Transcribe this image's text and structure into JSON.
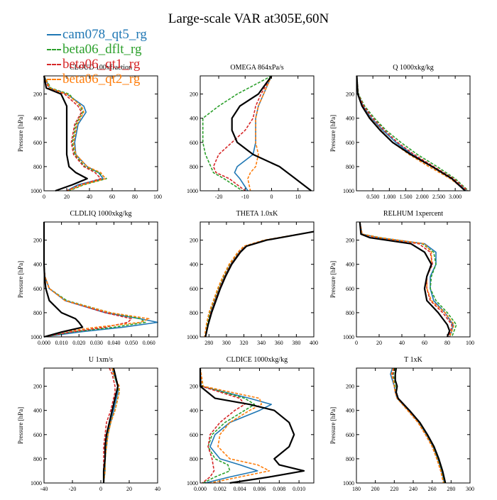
{
  "title": "Large-scale VAR at305E,60N",
  "legend": [
    {
      "label": "cam078_qt5_rg",
      "color": "#1f77b4",
      "dash": false
    },
    {
      "label": "beta06_dflt_rg",
      "color": "#2ca02c",
      "dash": true
    },
    {
      "label": "beta06_qt1_rg",
      "color": "#d62728",
      "dash": true
    },
    {
      "label": "beta06_qt2_rg",
      "color": "#ff7f0e",
      "dash": true
    }
  ],
  "ref_color": "#000000",
  "chart_data": [
    {
      "type": "line",
      "title": "CLOUD 100xfraction",
      "ylabel": "Pressure [hPa]",
      "xlim": [
        0,
        100
      ],
      "ylim": [
        1000,
        50
      ],
      "xticks": [
        0,
        20,
        40,
        60,
        80,
        100
      ],
      "xtick_labels": [
        "0",
        "20",
        "40",
        "60",
        "80",
        "100"
      ],
      "yticks": [
        200,
        400,
        600,
        800,
        1000
      ],
      "y": [
        50,
        150,
        200,
        300,
        350,
        450,
        600,
        700,
        800,
        850,
        900,
        950,
        1000
      ],
      "series": [
        {
          "name": "cam078_qt5_rg",
          "x": [
            0,
            5,
            20,
            35,
            37,
            30,
            27,
            28,
            38,
            48,
            52,
            30,
            20
          ]
        },
        {
          "name": "beta06_dflt_rg",
          "x": [
            0,
            6,
            22,
            32,
            34,
            28,
            25,
            27,
            36,
            48,
            55,
            35,
            22
          ]
        },
        {
          "name": "beta06_qt1_rg",
          "x": [
            0,
            4,
            18,
            30,
            33,
            27,
            24,
            26,
            35,
            45,
            50,
            32,
            20
          ]
        },
        {
          "name": "beta06_qt2_rg",
          "x": [
            0,
            5,
            20,
            33,
            35,
            29,
            26,
            28,
            38,
            50,
            54,
            34,
            21
          ]
        },
        {
          "name": "ref",
          "x": [
            0,
            2,
            15,
            20,
            20,
            20,
            20,
            20,
            22,
            28,
            38,
            25,
            10
          ]
        }
      ]
    },
    {
      "type": "line",
      "title": "OMEGA 864xPa/s",
      "ylabel": "",
      "xlim": [
        -27,
        16
      ],
      "ylim": [
        1000,
        50
      ],
      "xticks": [
        -20,
        -10,
        0,
        10
      ],
      "xtick_labels": [
        "-20",
        "-10",
        "0",
        "10"
      ],
      "yticks": [
        200,
        400,
        600,
        800,
        1000
      ],
      "y": [
        50,
        200,
        300,
        400,
        500,
        600,
        700,
        800,
        850,
        900,
        1000
      ],
      "series": [
        {
          "name": "cam078_qt5_rg",
          "x": [
            0,
            -3,
            -5,
            -6,
            -6,
            -6,
            -7,
            -13,
            -14,
            -12,
            -9
          ]
        },
        {
          "name": "beta06_dflt_rg",
          "x": [
            0,
            -13,
            -20,
            -26,
            -26,
            -26,
            -25,
            -23,
            -22,
            -18,
            -11
          ]
        },
        {
          "name": "beta06_qt1_rg",
          "x": [
            0,
            -4,
            -6,
            -7,
            -10,
            -15,
            -20,
            -22,
            -21,
            -16,
            -10
          ]
        },
        {
          "name": "beta06_qt2_rg",
          "x": [
            0,
            -3,
            -5,
            -6,
            -6,
            -6,
            -5,
            -6,
            -8,
            -9,
            -8
          ]
        },
        {
          "name": "ref",
          "x": [
            0,
            -5,
            -12,
            -15,
            -15,
            -13,
            -7,
            3,
            6,
            9,
            15
          ]
        }
      ]
    },
    {
      "type": "line",
      "title": "Q 1000xkg/kg",
      "ylabel": "Pressure [hPa]",
      "xlim": [
        0,
        3.45
      ],
      "ylim": [
        1000,
        50
      ],
      "xticks": [
        0.5,
        1,
        1.5,
        2,
        2.5,
        3
      ],
      "xtick_labels": [
        "0.500",
        "1.000",
        "1.500",
        "2.000",
        "2.500",
        "3.000"
      ],
      "yticks": [
        200,
        400,
        600,
        800,
        1000
      ],
      "y": [
        50,
        200,
        300,
        400,
        500,
        600,
        700,
        800,
        900,
        1000
      ],
      "series": [
        {
          "name": "cam078_qt5_rg",
          "x": [
            0.01,
            0.05,
            0.2,
            0.45,
            0.8,
            1.2,
            1.7,
            2.3,
            2.9,
            3.35
          ]
        },
        {
          "name": "beta06_dflt_rg",
          "x": [
            0.01,
            0.06,
            0.25,
            0.55,
            0.9,
            1.35,
            1.85,
            2.45,
            3.0,
            3.4
          ]
        },
        {
          "name": "beta06_qt1_rg",
          "x": [
            0.01,
            0.05,
            0.22,
            0.5,
            0.85,
            1.25,
            1.75,
            2.35,
            2.95,
            3.38
          ]
        },
        {
          "name": "beta06_qt2_rg",
          "x": [
            0.01,
            0.05,
            0.18,
            0.42,
            0.75,
            1.1,
            1.6,
            2.2,
            2.85,
            3.33
          ]
        },
        {
          "name": "ref",
          "x": [
            0.01,
            0.04,
            0.17,
            0.4,
            0.72,
            1.1,
            1.65,
            2.3,
            2.9,
            3.3
          ]
        }
      ]
    },
    {
      "type": "line",
      "title": "CLDLIQ 1000xkg/kg",
      "ylabel": "Pressure [hPa]",
      "xlim": [
        0,
        0.065
      ],
      "ylim": [
        1000,
        50
      ],
      "xticks": [
        0,
        0.01,
        0.02,
        0.03,
        0.04,
        0.05,
        0.06
      ],
      "xtick_labels": [
        "0.000",
        "0.010",
        "0.020",
        "0.030",
        "0.040",
        "0.050",
        "0.060"
      ],
      "yticks": [
        200,
        400,
        600,
        800,
        1000
      ],
      "y": [
        50,
        400,
        500,
        600,
        700,
        800,
        850,
        880,
        920,
        960,
        1000
      ],
      "series": [
        {
          "name": "cam078_qt5_rg",
          "x": [
            0,
            0,
            0.0005,
            0.003,
            0.012,
            0.035,
            0.055,
            0.065,
            0.045,
            0.02,
            0
          ]
        },
        {
          "name": "beta06_dflt_rg",
          "x": [
            0,
            0,
            0.0005,
            0.003,
            0.013,
            0.038,
            0.055,
            0.058,
            0.04,
            0.015,
            0
          ]
        },
        {
          "name": "beta06_qt1_rg",
          "x": [
            0,
            0,
            0.0005,
            0.003,
            0.012,
            0.035,
            0.05,
            0.048,
            0.035,
            0.015,
            0
          ]
        },
        {
          "name": "beta06_qt2_rg",
          "x": [
            0,
            0,
            0.0005,
            0.003,
            0.012,
            0.038,
            0.06,
            0.055,
            0.03,
            0.01,
            0
          ]
        },
        {
          "name": "ref",
          "x": [
            0,
            0,
            0.0003,
            0.001,
            0.003,
            0.01,
            0.018,
            0.02,
            0.022,
            0.01,
            0
          ]
        }
      ]
    },
    {
      "type": "line",
      "title": "THETA 1.0xK",
      "ylabel": "",
      "xlim": [
        270,
        400
      ],
      "ylim": [
        1000,
        50
      ],
      "xticks": [
        280,
        300,
        320,
        340,
        360,
        380,
        400
      ],
      "xtick_labels": [
        "280",
        "300",
        "320",
        "340",
        "360",
        "380",
        "400"
      ],
      "yticks": [
        200,
        400,
        600,
        800,
        1000
      ],
      "y": [
        130,
        200,
        250,
        300,
        400,
        500,
        600,
        700,
        800,
        900,
        1000
      ],
      "series": [
        {
          "name": "cam078_qt5_rg",
          "x": [
            400,
            345,
            322,
            315,
            305,
            298,
            292,
            287,
            282,
            279,
            276
          ]
        },
        {
          "name": "beta06_dflt_rg",
          "x": [
            400,
            344,
            321,
            314,
            304,
            297,
            291,
            286,
            281,
            278,
            276
          ]
        },
        {
          "name": "beta06_qt1_rg",
          "x": [
            400,
            345,
            322,
            315,
            305,
            298,
            292,
            287,
            282,
            279,
            276
          ]
        },
        {
          "name": "beta06_qt2_rg",
          "x": [
            400,
            343,
            320,
            313,
            303,
            296,
            290,
            285,
            280,
            277,
            275
          ]
        },
        {
          "name": "ref",
          "x": [
            400,
            346,
            323,
            316,
            306,
            299,
            293,
            288,
            283,
            279,
            276
          ]
        }
      ]
    },
    {
      "type": "line",
      "title": "RELHUM 1xpercent",
      "ylabel": "Pressure [hPa]",
      "xlim": [
        0,
        100
      ],
      "ylim": [
        1000,
        50
      ],
      "xticks": [
        0,
        20,
        40,
        60,
        80,
        100
      ],
      "xtick_labels": [
        "0",
        "20",
        "40",
        "60",
        "80",
        "100"
      ],
      "yticks": [
        200,
        400,
        600,
        800,
        1000
      ],
      "y": [
        50,
        150,
        180,
        230,
        300,
        400,
        500,
        600,
        700,
        800,
        900,
        950,
        1000
      ],
      "series": [
        {
          "name": "cam078_qt5_rg",
          "x": [
            3,
            5,
            20,
            60,
            70,
            70,
            65,
            65,
            68,
            78,
            85,
            84,
            82
          ]
        },
        {
          "name": "beta06_dflt_rg",
          "x": [
            3,
            5,
            22,
            58,
            68,
            70,
            66,
            65,
            70,
            80,
            88,
            86,
            84
          ]
        },
        {
          "name": "beta06_qt1_rg",
          "x": [
            3,
            5,
            18,
            55,
            65,
            67,
            62,
            62,
            65,
            76,
            84,
            83,
            81
          ]
        },
        {
          "name": "beta06_qt2_rg",
          "x": [
            3,
            5,
            21,
            60,
            66,
            66,
            62,
            62,
            66,
            78,
            86,
            84,
            82
          ]
        },
        {
          "name": "ref",
          "x": [
            3,
            4,
            12,
            48,
            60,
            66,
            62,
            60,
            62,
            72,
            80,
            82,
            80
          ]
        }
      ]
    },
    {
      "type": "line",
      "title": "U 1xm/s",
      "ylabel": "Pressure [hPa]",
      "xlim": [
        -40,
        40
      ],
      "ylim": [
        1000,
        50
      ],
      "xticks": [
        -40,
        -20,
        0,
        20,
        40
      ],
      "xtick_labels": [
        "-40",
        "-20",
        "0",
        "20",
        "40"
      ],
      "yticks": [
        200,
        400,
        600,
        800,
        1000
      ],
      "y": [
        50,
        100,
        200,
        250,
        300,
        400,
        500,
        600,
        700,
        800,
        900,
        1000
      ],
      "series": [
        {
          "name": "cam078_qt5_rg",
          "x": [
            8,
            9,
            12,
            12,
            11,
            9,
            7,
            5,
            4,
            3,
            3,
            2
          ]
        },
        {
          "name": "beta06_dflt_rg",
          "x": [
            8,
            9,
            12,
            13,
            12,
            10,
            7,
            5,
            4,
            3,
            3,
            2
          ]
        },
        {
          "name": "beta06_qt1_rg",
          "x": [
            6,
            8,
            10,
            10,
            9,
            7,
            4,
            3,
            2,
            2,
            2,
            2
          ]
        },
        {
          "name": "beta06_qt2_rg",
          "x": [
            8,
            9,
            13,
            13,
            12,
            10,
            7,
            5,
            4,
            3,
            3,
            2
          ]
        },
        {
          "name": "ref",
          "x": [
            9,
            10,
            12,
            11,
            10,
            8,
            6,
            4,
            3,
            3,
            2,
            2
          ]
        }
      ]
    },
    {
      "type": "line",
      "title": "CLDICE 1000xkg/kg",
      "ylabel": "",
      "xlim": [
        0,
        0.0115
      ],
      "ylim": [
        1000,
        50
      ],
      "xticks": [
        0,
        0.002,
        0.004,
        0.006,
        0.008,
        0.01
      ],
      "xtick_labels": [
        "0.000",
        "0.002",
        "0.004",
        "0.006",
        "0.008",
        "0.010"
      ],
      "yticks": [
        200,
        400,
        600,
        800,
        1000
      ],
      "y": [
        50,
        200,
        300,
        350,
        400,
        500,
        600,
        700,
        800,
        850,
        900,
        950,
        1000
      ],
      "series": [
        {
          "name": "cam078_qt5_rg",
          "x": [
            0,
            0.0001,
            0.005,
            0.0072,
            0.006,
            0.003,
            0.0015,
            0.001,
            0.002,
            0.004,
            0.0058,
            0.003,
            0.0005
          ]
        },
        {
          "name": "beta06_dflt_rg",
          "x": [
            0,
            0.0002,
            0.0045,
            0.0055,
            0.0045,
            0.0025,
            0.0012,
            0.0008,
            0.0015,
            0.0028,
            0.003,
            0.0015,
            0.0003
          ]
        },
        {
          "name": "beta06_qt1_rg",
          "x": [
            0,
            0.0001,
            0.004,
            0.0045,
            0.0035,
            0.002,
            0.001,
            0.0008,
            0.0012,
            0.0013,
            0.0014,
            0.001,
            0.0002
          ]
        },
        {
          "name": "beta06_qt2_rg",
          "x": [
            0,
            0.0003,
            0.006,
            0.0062,
            0.005,
            0.003,
            0.002,
            0.0018,
            0.003,
            0.0058,
            0.007,
            0.004,
            0.001
          ]
        },
        {
          "name": "ref",
          "x": [
            0,
            0,
            0.0015,
            0.005,
            0.0075,
            0.009,
            0.0095,
            0.009,
            0.0075,
            0.008,
            0.0105,
            0.007,
            0.003
          ]
        }
      ]
    },
    {
      "type": "line",
      "title": "T 1xK",
      "ylabel": "Pressure [hPa]",
      "xlim": [
        180,
        300
      ],
      "ylim": [
        1000,
        50
      ],
      "xticks": [
        180,
        200,
        220,
        240,
        260,
        280,
        300
      ],
      "xtick_labels": [
        "180",
        "200",
        "220",
        "240",
        "260",
        "280",
        "300"
      ],
      "yticks": [
        200,
        400,
        600,
        800,
        1000
      ],
      "y": [
        50,
        100,
        150,
        200,
        250,
        300,
        400,
        500,
        600,
        700,
        800,
        900,
        1000
      ],
      "series": [
        {
          "name": "cam078_qt5_rg",
          "x": [
            218,
            216,
            218,
            220,
            221,
            223,
            235,
            246,
            254,
            261,
            266,
            270,
            273
          ]
        },
        {
          "name": "beta06_dflt_rg",
          "x": [
            221,
            219,
            220,
            221,
            222,
            223,
            235,
            246,
            254,
            261,
            266,
            270,
            273
          ]
        },
        {
          "name": "beta06_qt1_rg",
          "x": [
            220,
            218,
            219,
            220,
            221,
            223,
            235,
            245,
            253,
            260,
            265,
            269,
            272
          ]
        },
        {
          "name": "beta06_qt2_rg",
          "x": [
            219,
            217,
            219,
            220,
            221,
            223,
            234,
            245,
            253,
            260,
            265,
            269,
            272
          ]
        },
        {
          "name": "ref",
          "x": [
            222,
            221,
            221,
            223,
            222,
            224,
            236,
            247,
            255,
            262,
            267,
            271,
            274
          ]
        }
      ]
    }
  ]
}
